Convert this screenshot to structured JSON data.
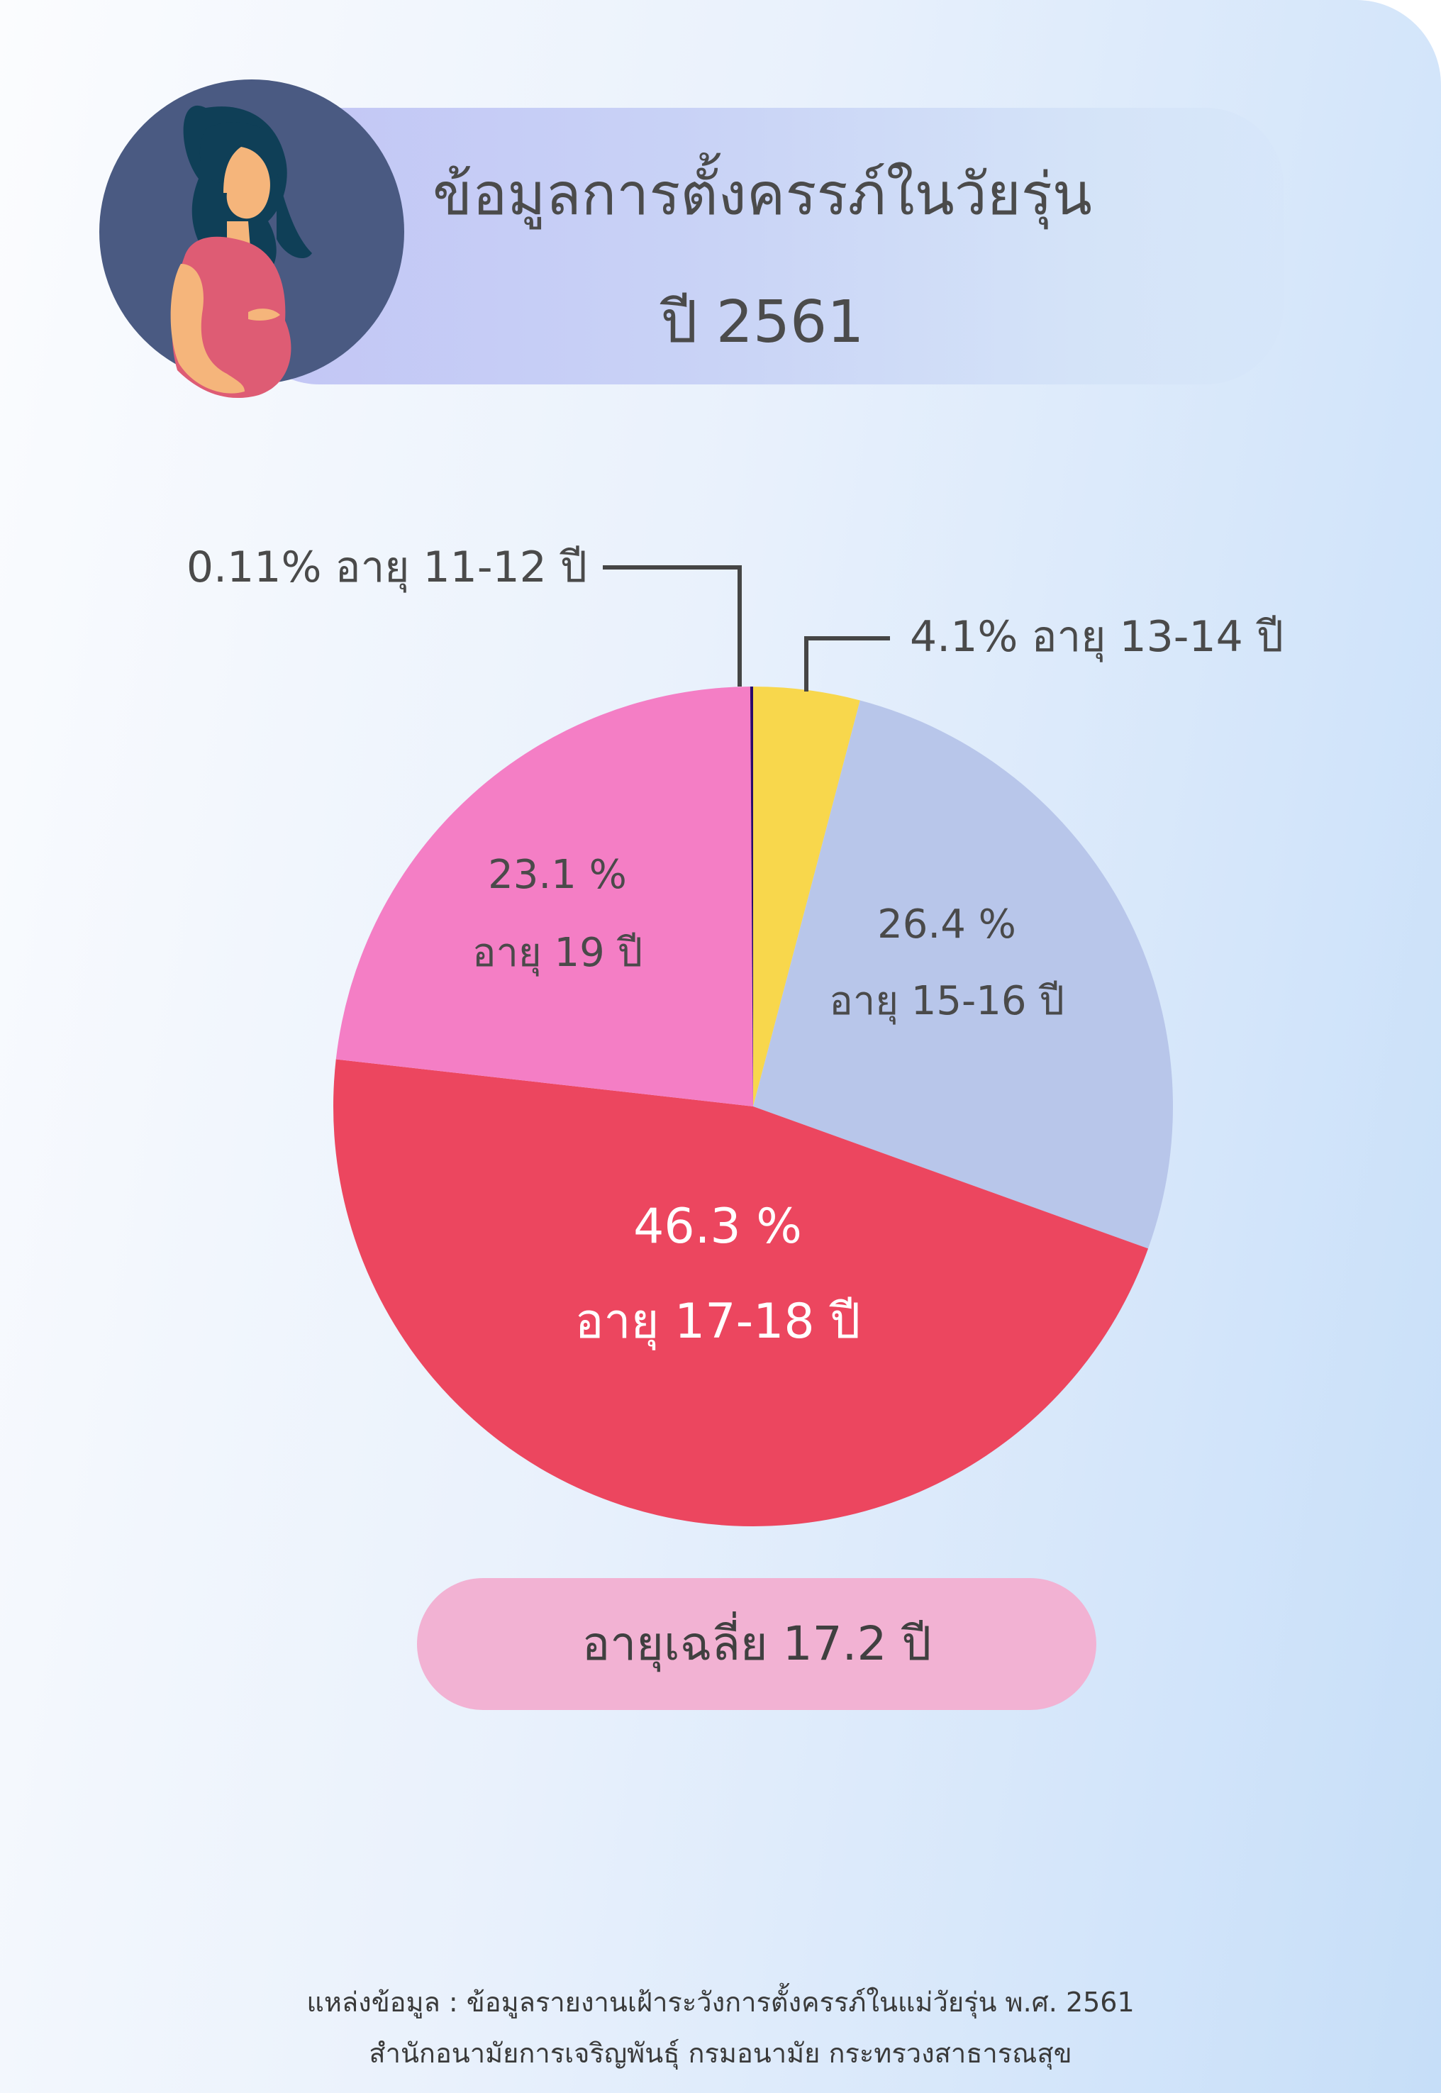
{
  "title": {
    "line1": "ข้อมูลการตั้งครรภ์ในวัยรุ่น",
    "line2": "ปี 2561"
  },
  "average": "อายุเฉลี่ย 17.2 ปี",
  "source": {
    "line1": "แหล่งข้อมูล : ข้อมูลรายงานเฝ้าระวังการตั้งครรภ์ในแม่วัยรุ่น พ.ศ. 2561",
    "line2": "สำนักอนามัยการเจริญพันธุ์ กรมอนามัย กระทรวงสาธารณสุข"
  },
  "colors": {
    "age_11_12": "#2a0a6b",
    "age_13_14": "#f8d74c",
    "age_15_16": "#b8c6ea",
    "age_17_18": "#ec465f",
    "age_19": "#f47ec5"
  },
  "chart_data": {
    "type": "pie",
    "start": "12 o'clock, clockwise",
    "slices": [
      {
        "key": "age_13_14",
        "value": 4.1,
        "label_pct": "4.1%",
        "label_age": "อายุ 13-14 ปี",
        "label_style": "callout",
        "color": "#f8d74c"
      },
      {
        "key": "age_15_16",
        "value": 26.4,
        "label_pct": "26.4 %",
        "label_age": "อายุ 15-16 ปี",
        "label_style": "inside",
        "color": "#b8c6ea"
      },
      {
        "key": "age_17_18",
        "value": 46.3,
        "label_pct": "46.3 %",
        "label_age": "อายุ 17-18 ปี",
        "label_style": "inside",
        "color": "#ec465f"
      },
      {
        "key": "age_19",
        "value": 23.1,
        "label_pct": "23.1 %",
        "label_age": "อายุ 19 ปี",
        "label_style": "inside",
        "color": "#f47ec5"
      },
      {
        "key": "age_11_12",
        "value": 0.11,
        "label_pct": "0.11%",
        "label_age": "อายุ 11-12 ปี",
        "label_style": "callout",
        "color": "#2a0a6b"
      }
    ]
  }
}
